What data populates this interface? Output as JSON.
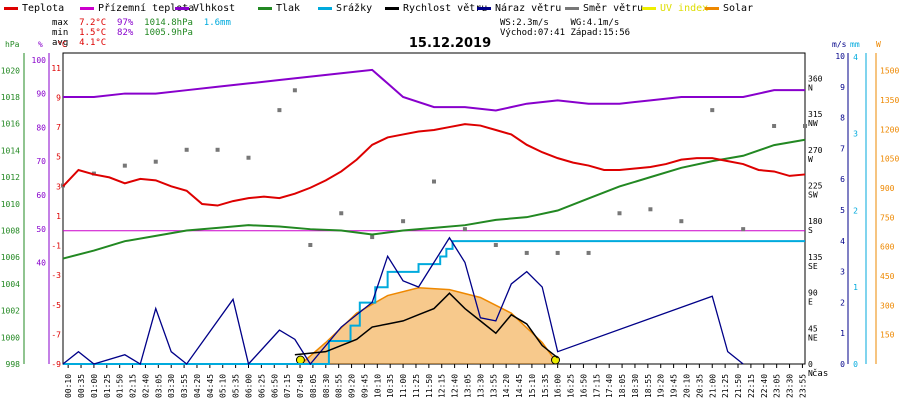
{
  "title": "15.12.2019",
  "legend": [
    {
      "label": "Teplota",
      "color": "#dd0000"
    },
    {
      "label": "Přízemní teplota",
      "color": "#cc00cc"
    },
    {
      "label": "Vlhkost",
      "color": "#8800cc"
    },
    {
      "label": "Tlak",
      "color": "#228822"
    },
    {
      "label": "Srážky",
      "color": "#00aadd"
    },
    {
      "label": "Rychlost větru",
      "color": "#000000"
    },
    {
      "label": "Náraz větru",
      "color": "#000088"
    },
    {
      "label": "Směr větru",
      "color": "#777777"
    },
    {
      "label": "UV index",
      "color": "#eeee00"
    },
    {
      "label": "Solar",
      "color": "#ee8800"
    }
  ],
  "stats": {
    "max_label": "max",
    "max_temp": "7.2°C",
    "max_hum": "97%",
    "max_press": "1014.8hPa",
    "max_rain": "1.6mm",
    "min_label": "min",
    "min_temp": "1.5°C",
    "min_hum": "82%",
    "min_press": "1005.9hPa",
    "avg_label": "avg",
    "avg_temp": "4.1°C"
  },
  "wind_info": {
    "ws": "WS:2.3m/s",
    "wg": "WG:4.1m/s",
    "sunrise": "Východ:07:41",
    "sunset": "Západ:15:56"
  },
  "axes": {
    "hpa_unit": "hPa",
    "pct_unit": "%",
    "c_unit": "°C",
    "ms_unit": "m/s",
    "mm_unit": "mm",
    "w_unit": "W",
    "time_unit": "čas",
    "hpa_ticks": [
      "1020",
      "1018",
      "1016",
      "1014",
      "1012",
      "1010",
      "1008",
      "1006",
      "1004",
      "1002",
      "1000",
      "998"
    ],
    "pct_ticks": [
      "100",
      "90",
      "80",
      "70",
      "60",
      "50",
      "40"
    ],
    "c_ticks": [
      "11",
      "9",
      "7",
      "5",
      "3",
      "1",
      "-1",
      "-3",
      "-5",
      "-7",
      "-9"
    ],
    "dir_ticks": [
      "360 N",
      "315 NW",
      "270 W",
      "225 SW",
      "180 S",
      "135 SE",
      "90 E",
      "45 NE",
      "0 N"
    ],
    "ms_ticks": [
      "10",
      "9",
      "8",
      "7",
      "6",
      "5",
      "4",
      "3",
      "2",
      "1",
      "0"
    ],
    "mm_ticks": [
      "4",
      "3",
      "2",
      "1",
      "0"
    ],
    "w_ticks": [
      "1500",
      "1350",
      "1200",
      "1050",
      "900",
      "750",
      "600",
      "450",
      "300",
      "150",
      "0"
    ],
    "time_ticks": [
      "00:10",
      "00:35",
      "01:00",
      "01:25",
      "01:50",
      "02:15",
      "02:40",
      "03:05",
      "03:30",
      "03:55",
      "04:20",
      "04:45",
      "05:10",
      "05:35",
      "06:00",
      "06:25",
      "06:50",
      "07:15",
      "07:40",
      "08:05",
      "08:30",
      "08:55",
      "09:20",
      "09:45",
      "10:10",
      "10:35",
      "11:00",
      "11:25",
      "11:50",
      "12:15",
      "12:40",
      "13:05",
      "13:30",
      "13:55",
      "14:20",
      "14:45",
      "15:10",
      "15:35",
      "16:00",
      "16:25",
      "16:50",
      "17:15",
      "17:40",
      "18:05",
      "18:30",
      "18:55",
      "19:20",
      "19:45",
      "20:10",
      "20:35",
      "21:00",
      "21:25",
      "21:50",
      "22:15",
      "22:40",
      "23:05",
      "23:30",
      "23:55"
    ]
  },
  "chart_data": {
    "type": "line",
    "title": "15.12.2019",
    "x_unit": "hours",
    "series": [
      {
        "name": "Teplota",
        "unit": "°C",
        "color": "#dd0000",
        "x": [
          0,
          0.5,
          1,
          1.5,
          2,
          2.5,
          3,
          3.5,
          4,
          4.5,
          5,
          5.5,
          6,
          6.5,
          7,
          7.5,
          8,
          8.5,
          9,
          9.5,
          10,
          10.5,
          11,
          11.5,
          12,
          12.5,
          13,
          13.5,
          14,
          14.5,
          15,
          15.5,
          16,
          16.5,
          17,
          17.5,
          18,
          18.5,
          19,
          19.5,
          20,
          20.5,
          21,
          21.5,
          22,
          22.5,
          23,
          23.5,
          24
        ],
        "y": [
          3.0,
          4.1,
          3.8,
          3.6,
          3.2,
          3.5,
          3.4,
          3.0,
          2.7,
          1.8,
          1.7,
          2.0,
          2.2,
          2.3,
          2.2,
          2.5,
          2.9,
          3.4,
          4.0,
          4.8,
          5.8,
          6.3,
          6.5,
          6.7,
          6.8,
          7.0,
          7.2,
          7.1,
          6.8,
          6.5,
          5.8,
          5.3,
          4.9,
          4.6,
          4.4,
          4.1,
          4.1,
          4.2,
          4.3,
          4.5,
          4.8,
          4.9,
          4.9,
          4.7,
          4.5,
          4.1,
          4.0,
          3.7,
          3.8
        ]
      },
      {
        "name": "Vlhkost",
        "unit": "%",
        "color": "#8800cc",
        "x": [
          0,
          1,
          2,
          3,
          4,
          5,
          6,
          7,
          8,
          9,
          10,
          10.5,
          11,
          12,
          13,
          14,
          15,
          16,
          17,
          18,
          19,
          20,
          21,
          22,
          23,
          24
        ],
        "y": [
          89,
          89,
          90,
          90,
          91,
          92,
          93,
          94,
          95,
          96,
          97,
          93,
          89,
          86,
          86,
          85,
          87,
          88,
          87,
          87,
          88,
          89,
          89,
          89,
          91,
          91
        ]
      },
      {
        "name": "Tlak",
        "unit": "hPa",
        "color": "#228822",
        "x": [
          0,
          1,
          2,
          3,
          4,
          5,
          6,
          7,
          8,
          9,
          10,
          11,
          12,
          13,
          14,
          15,
          16,
          17,
          18,
          19,
          20,
          21,
          22,
          23,
          24
        ],
        "y": [
          1005.9,
          1006.5,
          1007.2,
          1007.6,
          1008.0,
          1008.2,
          1008.4,
          1008.3,
          1008.1,
          1008.0,
          1007.7,
          1008.0,
          1008.2,
          1008.4,
          1008.8,
          1009.0,
          1009.5,
          1010.4,
          1011.3,
          1012.0,
          1012.7,
          1013.2,
          1013.6,
          1014.4,
          1014.8
        ]
      },
      {
        "name": "Srážky",
        "unit": "mm",
        "color": "#00aadd",
        "x": [
          0,
          7.3,
          8.3,
          8.6,
          9.3,
          9.6,
          10.1,
          10.5,
          11.5,
          12.2,
          12.4,
          12.6,
          24
        ],
        "y": [
          0,
          0,
          0,
          0.3,
          0.5,
          0.8,
          1.0,
          1.2,
          1.3,
          1.4,
          1.5,
          1.6,
          1.6
        ]
      },
      {
        "name": "Rychlost větru",
        "unit": "m/s",
        "color": "#000000",
        "x": [
          7.5,
          8.5,
          9.5,
          10,
          10.5,
          11,
          11.5,
          12,
          12.5,
          13,
          13.5,
          14,
          14.5,
          15,
          15.5,
          16
        ],
        "y": [
          0.3,
          0.4,
          0.8,
          1.2,
          1.3,
          1.4,
          1.6,
          1.8,
          2.3,
          1.8,
          1.4,
          1.0,
          1.6,
          1.3,
          0.6,
          0.2
        ]
      },
      {
        "name": "Náraz větru",
        "unit": "m/s",
        "color": "#000088",
        "x": [
          0,
          0.5,
          1,
          2,
          2.5,
          3,
          3.5,
          4,
          5.5,
          6,
          7,
          7.5,
          8,
          9,
          10,
          10.5,
          11,
          11.5,
          12,
          12.5,
          13,
          13.5,
          14,
          14.5,
          15,
          15.5,
          16,
          21,
          21.5,
          22
        ],
        "y": [
          0,
          0.4,
          0,
          0.3,
          0,
          1.8,
          0.4,
          0,
          2.1,
          0,
          1.1,
          0.8,
          0,
          1.2,
          2.0,
          3.5,
          2.7,
          2.5,
          3.3,
          4.1,
          3.3,
          1.5,
          1.4,
          2.6,
          3.0,
          2.5,
          0.4,
          2.2,
          0.4,
          0
        ]
      },
      {
        "name": "Solar",
        "unit": "W",
        "color": "#ee8800",
        "x": [
          7.7,
          8.5,
          9.5,
          10.5,
          11.5,
          12.5,
          13.5,
          14.5,
          15.5,
          16
        ],
        "y": [
          0,
          110,
          260,
          350,
          390,
          380,
          340,
          260,
          110,
          0
        ]
      },
      {
        "name": "Směr větru",
        "unit": "°",
        "color": "#777777",
        "x": [
          0,
          1,
          2,
          3,
          4,
          5,
          6,
          7,
          7.5,
          8,
          9,
          10,
          11,
          12,
          13,
          14,
          15,
          16,
          17,
          18,
          19,
          20,
          21,
          22,
          23,
          24
        ],
        "y": [
          225,
          240,
          250,
          255,
          270,
          270,
          260,
          320,
          345,
          150,
          190,
          160,
          180,
          230,
          170,
          150,
          140,
          140,
          140,
          190,
          195,
          180,
          320,
          170,
          300,
          300
        ]
      }
    ],
    "ylabel_left": "hPa / % / °C",
    "ylabel_right": "m/s / mm / W"
  }
}
